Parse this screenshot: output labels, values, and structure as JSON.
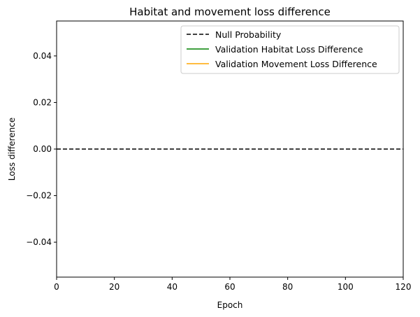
{
  "chart_data": {
    "type": "line",
    "title": "Habitat and movement loss difference",
    "xlabel": "Epoch",
    "ylabel": "Loss difference",
    "xlim": [
      0,
      120
    ],
    "ylim": [
      -0.055,
      0.055
    ],
    "x_ticks": [
      0,
      20,
      40,
      60,
      80,
      100,
      120
    ],
    "x_tick_labels": [
      "0",
      "20",
      "40",
      "60",
      "80",
      "100",
      "120"
    ],
    "y_ticks": [
      -0.04,
      -0.02,
      0.0,
      0.02,
      0.04
    ],
    "y_tick_labels": [
      "−0.04",
      "−0.02",
      "0.00",
      "0.02",
      "0.04"
    ],
    "grid": false,
    "legend_position": "top-right",
    "series": [
      {
        "name": "Null Probability",
        "color": "#000000",
        "style": "dashed",
        "x": [
          0,
          120
        ],
        "y": [
          0,
          0
        ]
      },
      {
        "name": "Validation Habitat Loss Difference",
        "color": "#008000",
        "style": "solid",
        "x": [],
        "y": []
      },
      {
        "name": "Validation Movement Loss Difference",
        "color": "#ffa500",
        "style": "solid",
        "x": [],
        "y": []
      }
    ]
  }
}
